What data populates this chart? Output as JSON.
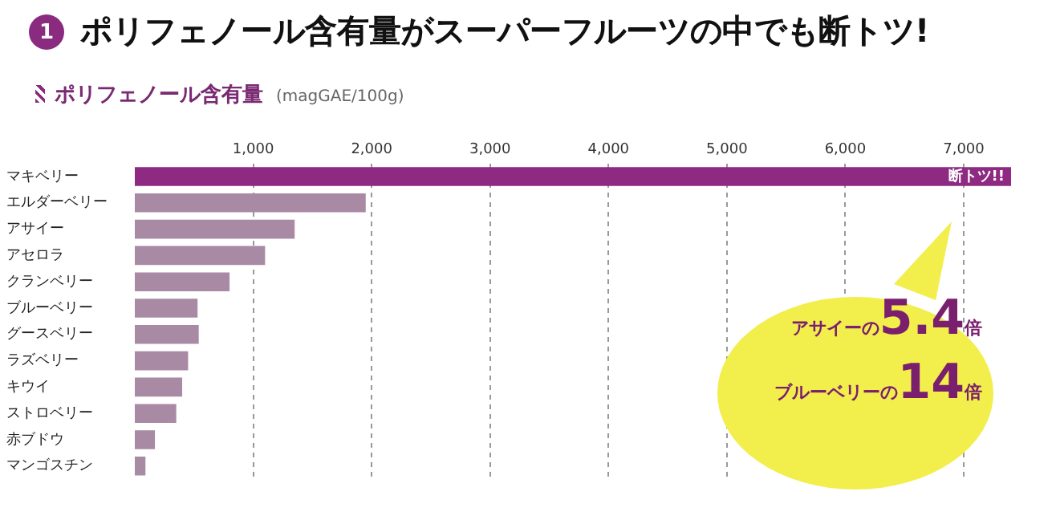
{
  "chart_data": {
    "type": "bar",
    "orientation": "horizontal",
    "title": "ポリフェノール含有量がスーパーフルーツの中でも断トツ!",
    "subtitle": "ポリフェノール含有量",
    "xlabel": "(magGAE/100g)",
    "categories": [
      "マキベリー",
      "エルダーベリー",
      "アサイー",
      "アセロラ",
      "クランベリー",
      "ブルーベリー",
      "グースベリー",
      "ラズベリー",
      "キウイ",
      "ストロベリー",
      "赤ブドウ",
      "マンゴスチン"
    ],
    "values": [
      7400,
      1950,
      1350,
      1100,
      800,
      530,
      540,
      450,
      400,
      350,
      170,
      90
    ],
    "colors": [
      "#8e2a82",
      "#a98aa5",
      "#a98aa5",
      "#a98aa5",
      "#a98aa5",
      "#a98aa5",
      "#a98aa5",
      "#a98aa5",
      "#a98aa5",
      "#a98aa5",
      "#a98aa5",
      "#a98aa5"
    ],
    "xlim": [
      0,
      7400
    ],
    "xticks": [
      {
        "value": 1000,
        "label": "1,000"
      },
      {
        "value": 2000,
        "label": "2,000"
      },
      {
        "value": 3000,
        "label": "3,000"
      },
      {
        "value": 4000,
        "label": "4,000"
      },
      {
        "value": 5000,
        "label": "5,000"
      },
      {
        "value": 6000,
        "label": "6,000"
      },
      {
        "value": 7000,
        "label": "7,000"
      }
    ],
    "grid": "x",
    "legend": false,
    "annotations": [
      "1",
      {
        "text": "断トツ!!",
        "x": 7400,
        "y": "マキベリー"
      },
      "アサイーの5.4倍",
      "ブルーベリーの14倍"
    ]
  }
}
